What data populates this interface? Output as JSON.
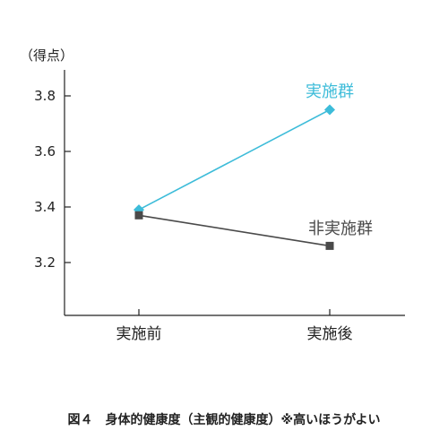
{
  "chart_data": {
    "type": "line",
    "y_unit_label": "（得点）",
    "categories": [
      "実施前",
      "実施後"
    ],
    "ylim": [
      3.0,
      3.8
    ],
    "yticks": [
      "3.2",
      "3.4",
      "3.6",
      "3.8"
    ],
    "grid": false,
    "series": [
      {
        "name": "実施群",
        "values": [
          3.39,
          3.75
        ],
        "color": "#3dbcd9",
        "marker": "diamond"
      },
      {
        "name": "非実施群",
        "values": [
          3.37,
          3.26
        ],
        "color": "#4a4a4a",
        "marker": "square"
      }
    ]
  },
  "caption": {
    "figure_label": "図４",
    "text": "身体的健康度（主観的健康度）※高いほうがよい"
  }
}
